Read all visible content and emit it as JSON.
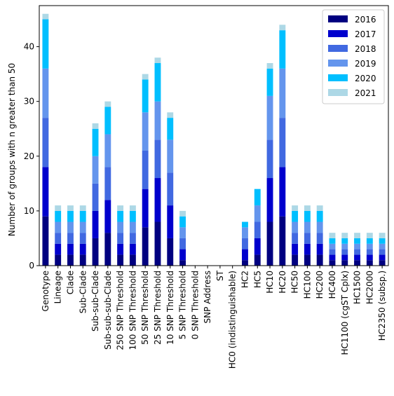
{
  "chart_data": {
    "type": "bar",
    "stacked": true,
    "title": "",
    "xlabel": "",
    "ylabel": "Number of groups with n greater than 50",
    "ylim": [
      0,
      47.5
    ],
    "yticks": [
      0,
      10,
      20,
      30,
      40
    ],
    "grid": false,
    "legend_position": "top-right",
    "categories": [
      "Genotype",
      "Lineage",
      "Clade",
      "Sub-Clade",
      "Sub-sub-Clade",
      "Sub-sub-sub-Clade",
      "250 SNP Threshold",
      "100 SNP Threshold",
      "50 SNP Threshold",
      "25 SNP Threshold",
      "10 SNP Threshold",
      "5 SNP Threshold",
      "0 SNP Threshold",
      "SNP Address",
      "ST",
      "HC0 (indistinguishable)",
      "HC2",
      "HC5",
      "HC10",
      "HC20",
      "HC50",
      "HC100",
      "HC200",
      "HC400",
      "HC1100 (cgST Cplx)",
      "HC1500",
      "HC2000",
      "HC2350 (subsp.)"
    ],
    "series": [
      {
        "name": "2016",
        "color": "#000080",
        "values": [
          9,
          2,
          2,
          2,
          5,
          6,
          2,
          2,
          7,
          8,
          5,
          1,
          0,
          0,
          0,
          0,
          1,
          2,
          8,
          9,
          2,
          2,
          2,
          1,
          1,
          1,
          1,
          1
        ]
      },
      {
        "name": "2017",
        "color": "#0000cd",
        "values": [
          9,
          2,
          2,
          2,
          5,
          6,
          2,
          2,
          7,
          8,
          6,
          2,
          0,
          0,
          0,
          0,
          2,
          3,
          8,
          9,
          2,
          2,
          2,
          1,
          1,
          1,
          1,
          1
        ]
      },
      {
        "name": "2018",
        "color": "#4169e1",
        "values": [
          9,
          2,
          2,
          2,
          5,
          6,
          2,
          2,
          7,
          7,
          6,
          2,
          0,
          0,
          0,
          0,
          2,
          3,
          7,
          9,
          2,
          2,
          2,
          1,
          1,
          1,
          1,
          1
        ]
      },
      {
        "name": "2019",
        "color": "#6495ed",
        "values": [
          9,
          2,
          2,
          2,
          5,
          6,
          2,
          2,
          7,
          7,
          6,
          2,
          0,
          0,
          0,
          0,
          2,
          3,
          8,
          9,
          2,
          2,
          2,
          1,
          1,
          1,
          1,
          1
        ]
      },
      {
        "name": "2020",
        "color": "#00bfff",
        "values": [
          9,
          2,
          2,
          2,
          5,
          5,
          2,
          2,
          6,
          7,
          4,
          2,
          0,
          0,
          0,
          0,
          1,
          3,
          5,
          7,
          2,
          2,
          2,
          1,
          1,
          1,
          1,
          1
        ]
      },
      {
        "name": "2021",
        "color": "#add8e6",
        "values": [
          1,
          1,
          1,
          1,
          1,
          1,
          1,
          1,
          1,
          1,
          1,
          1,
          0,
          0,
          0,
          0,
          0,
          0,
          1,
          1,
          1,
          1,
          1,
          1,
          1,
          1,
          1,
          1
        ]
      }
    ]
  }
}
